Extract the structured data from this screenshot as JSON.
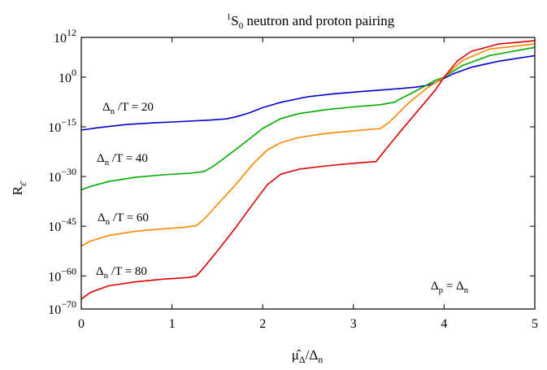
{
  "chart_data": {
    "type": "line",
    "title_sup": "1",
    "title_main": "S",
    "title_sub": "0",
    "title_rest": " neutron and proton pairing",
    "xlabel_base": "μ̂",
    "xlabel_sub": "Δ",
    "xlabel_rest": "/Δ",
    "xlabel_sub2": "n",
    "ylabel_base": "R",
    "ylabel_sub": "ε̄",
    "xlim": [
      0,
      5
    ],
    "ylim_log10": [
      -70,
      12
    ],
    "y_scale": "log",
    "x_ticks": [
      {
        "value": 0,
        "label": "0"
      },
      {
        "value": 1,
        "label": "1"
      },
      {
        "value": 2,
        "label": "2"
      },
      {
        "value": 3,
        "label": "3"
      },
      {
        "value": 4,
        "label": "4"
      },
      {
        "value": 5,
        "label": "5"
      }
    ],
    "y_ticks": [
      {
        "value": 12,
        "base": "10",
        "exp": "12"
      },
      {
        "value": 0,
        "base": "10",
        "exp": "0"
      },
      {
        "value": -15,
        "base": "10",
        "exp": "−15"
      },
      {
        "value": -30,
        "base": "10",
        "exp": "−30"
      },
      {
        "value": -45,
        "base": "10",
        "exp": "−45"
      },
      {
        "value": -60,
        "base": "10",
        "exp": "−60"
      },
      {
        "value": -70,
        "base": "10",
        "exp": "−70"
      }
    ],
    "annotation": {
      "base1": "Δ",
      "sub1": "p",
      "eq": " = Δ",
      "sub2": "n"
    },
    "series": [
      {
        "label_base": "Δ",
        "label_sub": "n",
        "label_rest": " /T = 20",
        "color": "#0000cc",
        "x": [
          0,
          0.2,
          0.5,
          0.8,
          1.1,
          1.4,
          1.6,
          1.7,
          1.85,
          2.0,
          2.2,
          2.5,
          2.8,
          3.1,
          3.4,
          3.7,
          3.85,
          3.95,
          4.1,
          4.3,
          4.6,
          5.0
        ],
        "log_y": [
          -16.0,
          -15.2,
          -14.3,
          -13.8,
          -13.4,
          -13.0,
          -12.6,
          -12.0,
          -10.8,
          -9.2,
          -7.6,
          -5.9,
          -5.0,
          -4.3,
          -3.7,
          -3.0,
          -2.3,
          -1.0,
          1.0,
          3.0,
          4.8,
          6.5
        ]
      },
      {
        "label_base": "Δ",
        "label_sub": "n",
        "label_rest": " /T = 40",
        "color": "#00aa00",
        "x": [
          0,
          0.1,
          0.3,
          0.6,
          0.9,
          1.2,
          1.35,
          1.45,
          1.6,
          1.8,
          2.0,
          2.2,
          2.4,
          2.7,
          3.0,
          3.3,
          3.45,
          3.5,
          3.7,
          3.9,
          4.0,
          4.2,
          4.5,
          5.0
        ],
        "log_y": [
          -34.0,
          -33.0,
          -31.5,
          -30.2,
          -29.5,
          -29.0,
          -28.5,
          -27.0,
          -24.0,
          -19.8,
          -15.5,
          -12.5,
          -11.0,
          -9.8,
          -9.0,
          -8.3,
          -7.6,
          -6.8,
          -4.0,
          -1.0,
          0.0,
          3.5,
          6.5,
          9.0
        ]
      },
      {
        "label_base": "Δ",
        "label_sub": "n",
        "label_rest": " /T = 60",
        "color": "#ff8800",
        "x": [
          0,
          0.1,
          0.3,
          0.6,
          0.9,
          1.15,
          1.27,
          1.35,
          1.5,
          1.7,
          1.9,
          2.05,
          2.2,
          2.4,
          2.7,
          3.0,
          3.3,
          3.4,
          3.6,
          3.8,
          4.0,
          4.2,
          4.5,
          5.0
        ],
        "log_y": [
          -51.0,
          -49.5,
          -47.8,
          -46.5,
          -45.8,
          -45.3,
          -44.8,
          -43.0,
          -38.5,
          -32.5,
          -26.0,
          -22.0,
          -19.8,
          -18.2,
          -17.0,
          -16.2,
          -15.5,
          -13.5,
          -8.0,
          -3.5,
          0.0,
          5.0,
          8.5,
          10.0
        ]
      },
      {
        "label_base": "Δ",
        "label_sub": "n",
        "label_rest": " /T = 80",
        "color": "#dd0000",
        "x": [
          0,
          0.1,
          0.3,
          0.6,
          0.9,
          1.18,
          1.27,
          1.35,
          1.5,
          1.7,
          1.9,
          2.05,
          2.2,
          2.4,
          2.7,
          3.0,
          3.25,
          3.35,
          3.5,
          3.7,
          3.9,
          4.0,
          4.15,
          4.3,
          4.6,
          5.0
        ],
        "log_y": [
          -67.0,
          -65.0,
          -63.0,
          -61.8,
          -61.0,
          -60.5,
          -60.0,
          -57.5,
          -52.5,
          -45.5,
          -38.0,
          -32.5,
          -29.3,
          -27.8,
          -26.8,
          -26.0,
          -25.5,
          -22.0,
          -17.0,
          -10.5,
          -4.0,
          0.0,
          5.0,
          7.8,
          10.0,
          11.0
        ]
      }
    ]
  }
}
